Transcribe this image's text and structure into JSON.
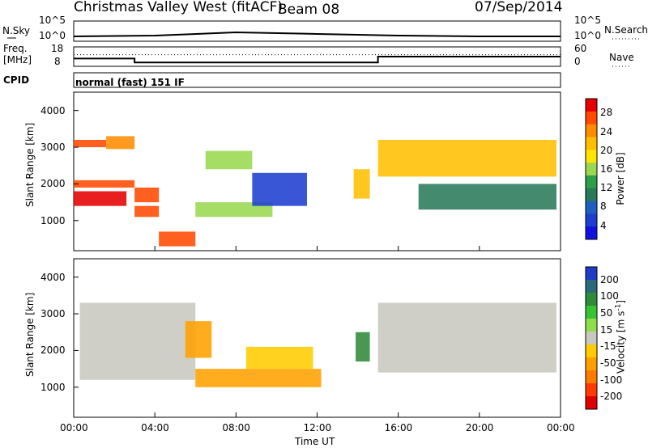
{
  "header": {
    "station": "Christmas Valley West (fitACF)",
    "beam": "Beam 08",
    "date": "07/Sep/2014"
  },
  "sky_panel": {
    "left_label": "N.Sky",
    "right_label": "N.Search",
    "left_ticks": [
      "10^5",
      "10^0"
    ],
    "right_ticks": [
      "10^5",
      "10^0"
    ]
  },
  "freq_panel": {
    "left_label": "Freq. [MHz]",
    "right_label": "Nave",
    "left_ticks": [
      "18",
      "8"
    ],
    "right_ticks": [
      "60",
      "0"
    ]
  },
  "cpid": {
    "label": "CPID",
    "mode": "normal (fast) 151 IF"
  },
  "power_panel": {
    "ylabel": "Slant Range [km]",
    "yticks": [
      "4000",
      "3000",
      "2000",
      "1000"
    ],
    "colorbar_label": "Power [dB]",
    "colorbar_ticks": [
      "28",
      "24",
      "20",
      "16",
      "12",
      "8",
      "4"
    ],
    "colorbar_colors": [
      "#e60000",
      "#ff4a00",
      "#ff8c00",
      "#ffbf00",
      "#ffe500",
      "#9ad850",
      "#2f9e4a",
      "#2a7a5a",
      "#1f5fbf",
      "#1c3fd0",
      "#1010e0"
    ]
  },
  "velocity_panel": {
    "ylabel": "Slant Range [km]",
    "yticks": [
      "4000",
      "3000",
      "2000",
      "1000"
    ],
    "colorbar_label": "Velocity [m s^-1]",
    "colorbar_ticks": [
      "200",
      "100",
      "50",
      "15",
      "-15",
      "-50",
      "-100",
      "-200"
    ],
    "colorbar_colors": [
      "#1e3cc8",
      "#2a6a7a",
      "#2f8a3a",
      "#34c434",
      "#8ee04a",
      "#c8c8c0",
      "#ffcc00",
      "#ffa000",
      "#ff7a00",
      "#ff3a00",
      "#e00000"
    ]
  },
  "xaxis": {
    "label": "Time UT",
    "ticks": [
      "00:00",
      "04:00",
      "08:00",
      "12:00",
      "16:00",
      "20:00",
      "00:00"
    ]
  },
  "chart_data": [
    {
      "type": "line",
      "title": "N.Sky / N.Search",
      "x": [
        "00:00",
        "04:00",
        "08:00",
        "12:00",
        "16:00",
        "20:00",
        "00:00"
      ],
      "series": [
        {
          "name": "N.Sky",
          "values": [
            1.2,
            1.4,
            2.2,
            1.8,
            1.4,
            1.2,
            1.2
          ]
        }
      ]
    },
    {
      "type": "line",
      "title": "Freq. [MHz] / Nave",
      "x_hours": [
        0,
        3.0,
        3.0,
        15.0,
        15.0,
        24
      ],
      "series": [
        {
          "name": "Freq. [MHz]",
          "values": [
            12,
            12,
            10,
            10,
            13,
            13
          ]
        },
        {
          "name": "Nave",
          "values": [
            14,
            14,
            14,
            14,
            14,
            14
          ]
        }
      ]
    },
    {
      "type": "heatmap",
      "quantity": "Power [dB]",
      "xlabel": "Time UT",
      "ylabel": "Slant Range [km]",
      "xlim_hours": [
        0,
        24
      ],
      "ylim_km": [
        180,
        4500
      ],
      "colorbar_range": [
        0,
        30
      ],
      "regions": [
        {
          "t": [
            0.0,
            2.6
          ],
          "km": [
            1400,
            1800
          ],
          "dB": 28
        },
        {
          "t": [
            0.0,
            1.6
          ],
          "km": [
            3000,
            3200
          ],
          "dB": 26
        },
        {
          "t": [
            1.6,
            3.0
          ],
          "km": [
            2950,
            3300
          ],
          "dB": 22
        },
        {
          "t": [
            0.0,
            3.0
          ],
          "km": [
            1900,
            2100
          ],
          "dB": 26
        },
        {
          "t": [
            3.0,
            4.2
          ],
          "km": [
            1100,
            1400
          ],
          "dB": 27
        },
        {
          "t": [
            3.0,
            4.2
          ],
          "km": [
            1500,
            1900
          ],
          "dB": 24
        },
        {
          "t": [
            4.2,
            6.0
          ],
          "km": [
            300,
            700
          ],
          "dB": 26
        },
        {
          "t": [
            6.0,
            9.8
          ],
          "km": [
            1100,
            1500
          ],
          "dB": 14
        },
        {
          "t": [
            6.5,
            8.8
          ],
          "km": [
            2400,
            2900
          ],
          "dB": 14
        },
        {
          "t": [
            8.8,
            11.5
          ],
          "km": [
            1400,
            2300
          ],
          "dB": 6
        },
        {
          "t": [
            13.8,
            14.6
          ],
          "km": [
            1600,
            2400
          ],
          "dB": 18
        },
        {
          "t": [
            15.0,
            23.8
          ],
          "km": [
            2200,
            3200
          ],
          "dB": 18
        },
        {
          "t": [
            17.0,
            23.8
          ],
          "km": [
            1300,
            2000
          ],
          "dB": 10
        }
      ]
    },
    {
      "type": "heatmap",
      "quantity": "Velocity [m s^-1]",
      "xlabel": "Time UT",
      "ylabel": "Slant Range [km]",
      "xlim_hours": [
        0,
        24
      ],
      "ylim_km": [
        180,
        4500
      ],
      "colorbar_range": [
        -200,
        200
      ],
      "regions": [
        {
          "t": [
            0.3,
            6.0
          ],
          "km": [
            1200,
            3300
          ],
          "mps": 0
        },
        {
          "t": [
            6.0,
            12.2
          ],
          "km": [
            1000,
            1500
          ],
          "mps": -60
        },
        {
          "t": [
            8.5,
            11.8
          ],
          "km": [
            1500,
            2100
          ],
          "mps": -50
        },
        {
          "t": [
            5.5,
            6.8
          ],
          "km": [
            1800,
            2800
          ],
          "mps": -60
        },
        {
          "t": [
            13.9,
            14.6
          ],
          "km": [
            1700,
            2500
          ],
          "mps": 40
        },
        {
          "t": [
            15.0,
            23.8
          ],
          "km": [
            1400,
            3300
          ],
          "mps": 0
        }
      ]
    }
  ]
}
